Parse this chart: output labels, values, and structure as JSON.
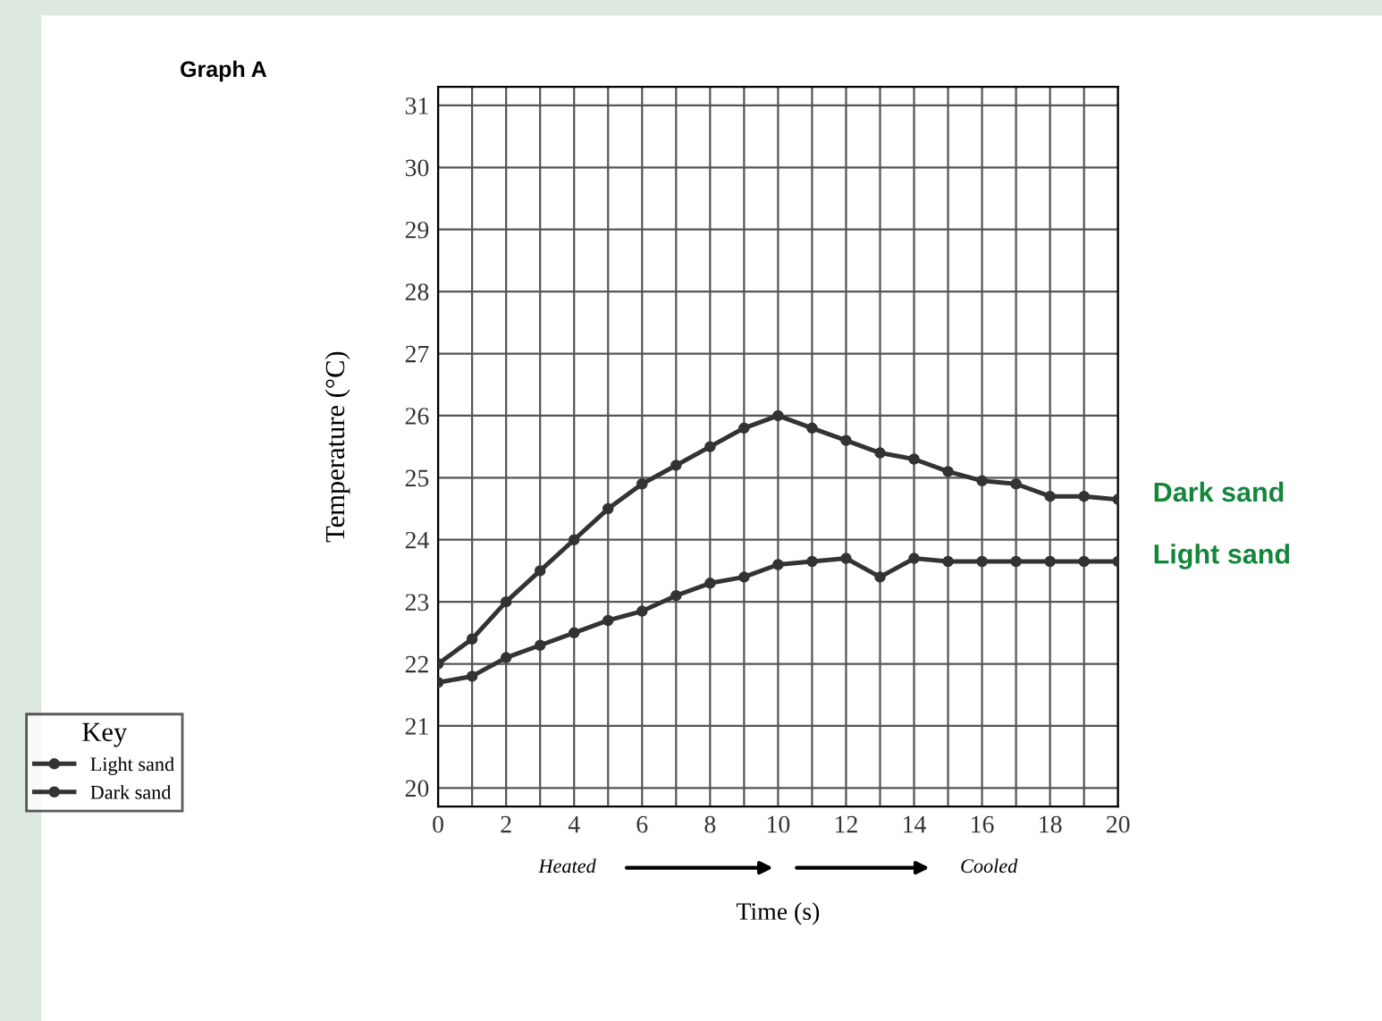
{
  "chart_data": {
    "type": "line",
    "title": "Graph A",
    "xlabel": "Time (s)",
    "ylabel": "Temperature (°C)",
    "legend_title": "Key",
    "x": [
      0,
      1,
      2,
      3,
      4,
      5,
      6,
      7,
      8,
      9,
      10,
      11,
      12,
      13,
      14,
      15,
      16,
      17,
      18,
      19,
      20
    ],
    "series": [
      {
        "name": "Light sand",
        "color": "#333333",
        "values": [
          21.7,
          21.8,
          22.1,
          22.3,
          22.5,
          22.7,
          22.85,
          23.1,
          23.3,
          23.4,
          23.6,
          23.65,
          23.7,
          23.4,
          23.7,
          23.65,
          23.65,
          23.65,
          23.65,
          23.65,
          23.65
        ]
      },
      {
        "name": "Dark sand",
        "color": "#333333",
        "values": [
          22.0,
          22.4,
          23.0,
          23.5,
          24.0,
          24.5,
          24.9,
          25.2,
          25.5,
          25.8,
          26.0,
          25.8,
          25.6,
          25.4,
          25.3,
          25.1,
          24.95,
          24.9,
          24.7,
          24.7,
          24.65
        ]
      }
    ],
    "xlim": [
      0,
      20
    ],
    "ylim": [
      19.7,
      31.3
    ],
    "xticks": [
      0,
      {
        "value": 1,
        "label": null
      },
      2,
      {
        "value": 3,
        "label": null
      },
      4,
      {
        "value": 5,
        "label": null
      },
      6,
      {
        "value": 7,
        "label": null
      },
      8,
      {
        "value": 9,
        "label": null
      },
      10,
      {
        "value": 11,
        "label": null
      },
      12,
      {
        "value": 13,
        "label": null
      },
      14,
      {
        "value": 15,
        "label": null
      },
      16,
      {
        "value": 17,
        "label": null
      },
      18,
      {
        "value": 19,
        "label": null
      },
      20
    ],
    "yticks": [
      20,
      21,
      22,
      23,
      24,
      25,
      26,
      27,
      28,
      29,
      30,
      31
    ],
    "annotations": [
      "Heated",
      "Cooled"
    ],
    "grid": true,
    "legend": "bottom left",
    "marker": "circle",
    "line_style": "solid"
  }
}
